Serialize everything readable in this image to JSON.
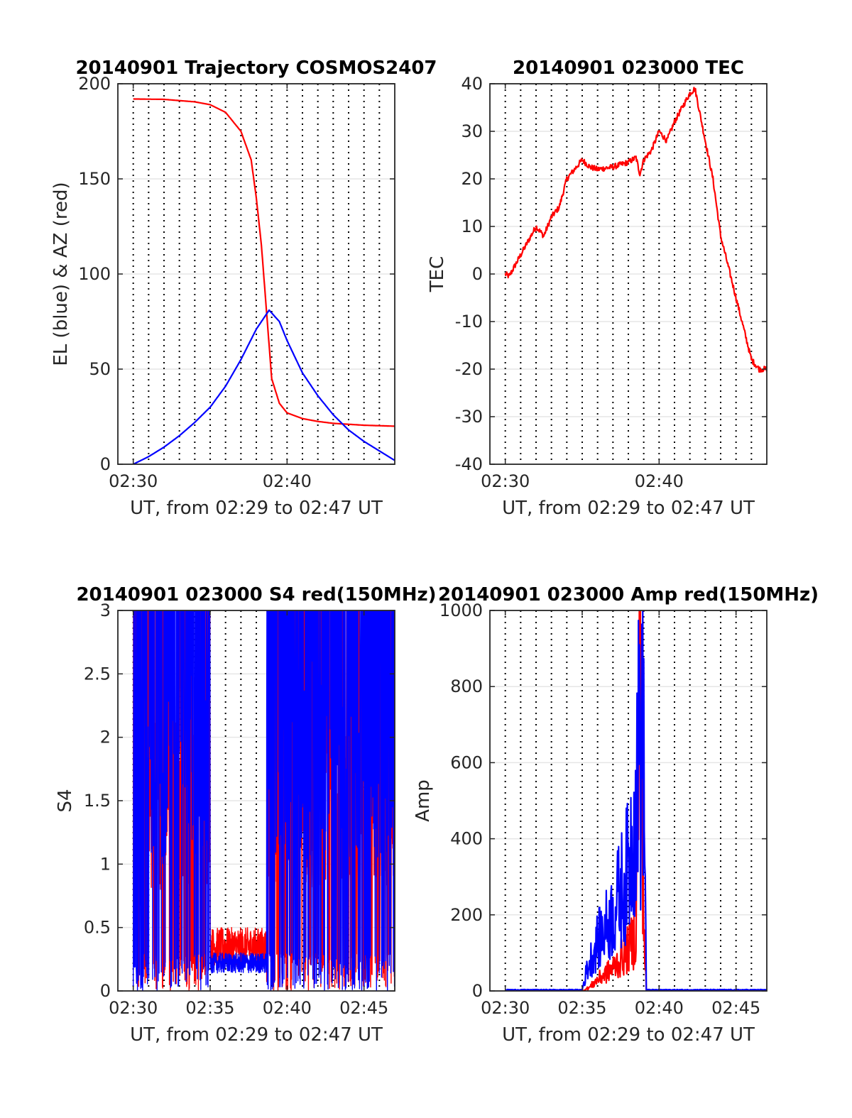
{
  "colors": {
    "red": "#ff0000",
    "blue": "#0000ff",
    "grid": "#e6e6e6",
    "axis": "#262626"
  },
  "chart_data": [
    {
      "id": "trajectory",
      "type": "line",
      "title": "20140901 Trajectory COSMOS2407",
      "xlabel": "UT, from 02:29 to 02:47 UT",
      "ylabel": "EL (blue) & AZ (red)",
      "xlim": [
        "02:29",
        "02:47"
      ],
      "ylim": [
        0,
        200
      ],
      "yticks": [
        0,
        50,
        100,
        150,
        200
      ],
      "xticks": [
        "02:30",
        "02:40"
      ],
      "grid": "dotted vertical every minute, horizontal at ticks",
      "series": [
        {
          "color": "red",
          "points": [
            [
              "02:30",
              192
            ],
            [
              "02:32",
              191.8
            ],
            [
              "02:34",
              190.5
            ],
            [
              "02:35",
              189
            ],
            [
              "02:36",
              185
            ],
            [
              "02:37",
              175
            ],
            [
              "02:37:40",
              160
            ],
            [
              "02:38",
              140
            ],
            [
              "02:38:20",
              115
            ],
            [
              "02:38:40",
              80
            ],
            [
              "02:39",
              45
            ],
            [
              "02:39:30",
              32
            ],
            [
              "02:40",
              27
            ],
            [
              "02:41",
              24
            ],
            [
              "02:42",
              22.5
            ],
            [
              "02:43",
              21.5
            ],
            [
              "02:44",
              21
            ],
            [
              "02:45",
              20.5
            ],
            [
              "02:47",
              20
            ]
          ]
        },
        {
          "color": "blue",
          "points": [
            [
              "02:30",
              0
            ],
            [
              "02:31",
              4
            ],
            [
              "02:32",
              9
            ],
            [
              "02:33",
              15
            ],
            [
              "02:34",
              22
            ],
            [
              "02:35",
              30
            ],
            [
              "02:36",
              41
            ],
            [
              "02:37",
              55
            ],
            [
              "02:38",
              71
            ],
            [
              "02:38:50",
              81
            ],
            [
              "02:39:30",
              75
            ],
            [
              "02:40",
              65
            ],
            [
              "02:41",
              48
            ],
            [
              "02:42",
              36
            ],
            [
              "02:43",
              26
            ],
            [
              "02:44",
              18
            ],
            [
              "02:45",
              12
            ],
            [
              "02:46",
              7
            ],
            [
              "02:47",
              2
            ]
          ]
        }
      ]
    },
    {
      "id": "tec",
      "type": "line",
      "title": "20140901 023000 TEC",
      "xlabel": "UT, from 02:29 to 02:47 UT",
      "ylabel": "TEC",
      "xlim": [
        "02:29",
        "02:47"
      ],
      "ylim": [
        -40,
        40
      ],
      "yticks": [
        -40,
        -30,
        -20,
        -10,
        0,
        10,
        20,
        30,
        40
      ],
      "xticks": [
        "02:30",
        "02:40"
      ],
      "grid": "dotted vertical every minute, horizontal at ticks",
      "series": [
        {
          "color": "red",
          "points": [
            [
              "02:30",
              0
            ],
            [
              "02:30:15",
              -0.5
            ],
            [
              "02:31",
              4
            ],
            [
              "02:32",
              10
            ],
            [
              "02:32:30",
              8
            ],
            [
              "02:33",
              12
            ],
            [
              "02:33:30",
              14
            ],
            [
              "02:34",
              20
            ],
            [
              "02:35",
              24
            ],
            [
              "02:35:30",
              22.5
            ],
            [
              "02:36",
              22
            ],
            [
              "02:37",
              22.5
            ],
            [
              "02:38",
              23.5
            ],
            [
              "02:38:30",
              24.5
            ],
            [
              "02:38:45",
              21
            ],
            [
              "02:39",
              24
            ],
            [
              "02:39:30",
              26
            ],
            [
              "02:40",
              30
            ],
            [
              "02:40:30",
              28
            ],
            [
              "02:41",
              32
            ],
            [
              "02:42",
              38
            ],
            [
              "02:42:20",
              39
            ],
            [
              "02:43",
              28
            ],
            [
              "02:43:30",
              20
            ],
            [
              "02:44",
              8
            ],
            [
              "02:45",
              -5
            ],
            [
              "02:46",
              -18
            ],
            [
              "02:46:30",
              -20
            ],
            [
              "02:47",
              -20
            ],
            [
              "02:47:30",
              -22
            ]
          ]
        }
      ]
    },
    {
      "id": "s4",
      "type": "line",
      "title": "20140901 023000 S4 red(150MHz)",
      "xlabel": "UT, from 02:29 to 02:47 UT",
      "ylabel": "S4",
      "xlim": [
        "02:29",
        "02:47"
      ],
      "ylim": [
        0,
        3
      ],
      "yticks": [
        "0",
        "0.5",
        "1",
        "1.5",
        "2",
        "2.5",
        "3"
      ],
      "xticks": [
        "02:30",
        "02:35",
        "02:40",
        "02:45"
      ],
      "grid": "dotted vertical every minute, horizontal at ticks",
      "series": [
        {
          "color": "red",
          "note_segments": [
            [
              "02:30",
              "02:35",
              "noisy 0 to 3"
            ],
            [
              "02:35",
              "02:38:40",
              "0.2 to 0.5"
            ],
            [
              "02:38:40",
              "02:47",
              "noisy 0 to 3"
            ]
          ]
        },
        {
          "color": "blue",
          "note_segments": [
            [
              "02:30",
              "02:35",
              "noisy 0 to 3"
            ],
            [
              "02:35",
              "02:38:40",
              "0.15 to 0.3"
            ],
            [
              "02:38:40",
              "02:47",
              "noisy 0 to 3"
            ]
          ]
        }
      ]
    },
    {
      "id": "amp",
      "type": "line",
      "title": "20140901 023000 Amp red(150MHz)",
      "xlabel": "UT, from 02:29 to 02:47 UT",
      "ylabel": "Amp",
      "xlim": [
        "02:29",
        "02:47"
      ],
      "ylim": [
        0,
        1000
      ],
      "yticks": [
        0,
        200,
        400,
        600,
        800,
        1000
      ],
      "xticks": [
        "02:30",
        "02:35",
        "02:40",
        "02:45"
      ],
      "grid": "dotted vertical every minute, horizontal at ticks",
      "series": [
        {
          "color": "red",
          "points": [
            [
              "02:30",
              0
            ],
            [
              "02:35",
              0
            ],
            [
              "02:35:30",
              10
            ],
            [
              "02:36",
              30
            ],
            [
              "02:37",
              60
            ],
            [
              "02:38",
              110
            ],
            [
              "02:38:30",
              150
            ],
            [
              "02:38:45",
              920
            ],
            [
              "02:39",
              180
            ],
            [
              "02:39:10",
              0
            ],
            [
              "02:47",
              0
            ]
          ]
        },
        {
          "color": "blue",
          "points": [
            [
              "02:30",
              3
            ],
            [
              "02:35",
              3
            ],
            [
              "02:35:20",
              60
            ],
            [
              "02:36",
              130
            ],
            [
              "02:37",
              200
            ],
            [
              "02:38",
              320
            ],
            [
              "02:38:30",
              500
            ],
            [
              "02:38:45",
              710
            ],
            [
              "02:39",
              650
            ],
            [
              "02:39:10",
              3
            ],
            [
              "02:47",
              3
            ]
          ]
        }
      ]
    }
  ]
}
